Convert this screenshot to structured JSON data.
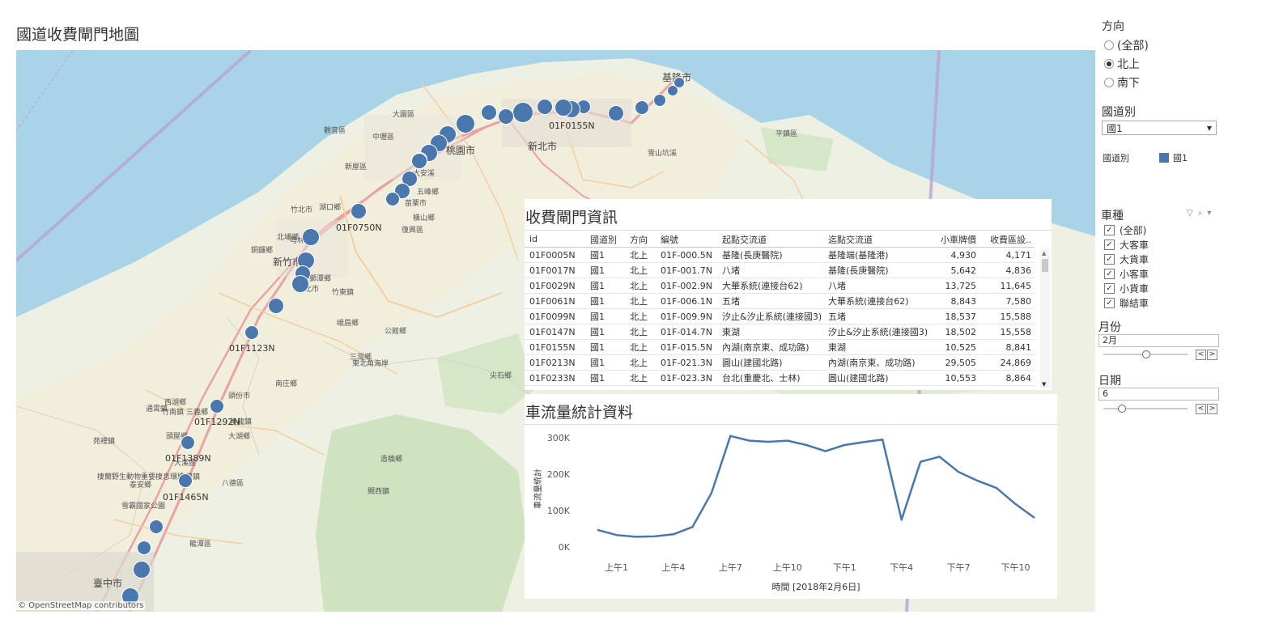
{
  "dashboard_title": "國道收費閘門地圖",
  "map": {
    "attribution": "© OpenStreetMap contributors",
    "colors": {
      "sea": "#a9d3e6",
      "land": "#eef0e4",
      "park": "#cfe3c0",
      "road_major": "#e8a3a3",
      "road_minor": "#f3cfa0",
      "boundary": "#b9a3d6",
      "marker": "#4a77ad"
    },
    "city_labels": [
      "桃園市",
      "新北市",
      "新竹市",
      "臺中市",
      "基隆市"
    ],
    "small_labels": [
      "大園區",
      "觀音區",
      "新屋區",
      "湖口鄉",
      "竹北市",
      "芎林鄉",
      "竹東鎮",
      "北埔鄉",
      "峨眉鄉",
      "三灣鄉",
      "南庄鄉",
      "頭份市",
      "後龍鎮",
      "西湖鄉",
      "通霄鎮",
      "苑裡鎮",
      "大湖鄉",
      "泰安鄉",
      "卓蘭鎮",
      "雪霸國家公園",
      "棲蘭野生動物重要棲息環境",
      "八德區",
      "大溪區",
      "龍潭區",
      "關西鎮",
      "尖石鄉",
      "五峰鄉",
      "橫山鄉",
      "復興區",
      "獅潭鄉",
      "公館鄉",
      "東北角海岸",
      "新北市",
      "中壢區",
      "平鎮區",
      "雪山坑溪",
      "大安溪",
      "苗栗市",
      "造橋鄉",
      "頭屋鄉",
      "竹南鎮",
      "三義鄉",
      "銅鑼鄉"
    ],
    "markers": [
      {
        "id": "01F0005N",
        "label": ""
      },
      {
        "id": "01F0017N",
        "label": ""
      },
      {
        "id": "01F0029N",
        "label": ""
      },
      {
        "id": "01F0061N",
        "label": ""
      },
      {
        "id": "01F0099N",
        "label": ""
      },
      {
        "id": "01F0147N",
        "label": ""
      },
      {
        "id": "01F0155N",
        "label": "01F0155N"
      },
      {
        "id": "01F0213N",
        "label": ""
      },
      {
        "id": "01F0233N",
        "label": ""
      },
      {
        "id": "01F0264N",
        "label": ""
      },
      {
        "id": "01F0293N",
        "label": ""
      },
      {
        "id": "01F0339N",
        "label": ""
      },
      {
        "id": "01F0376N",
        "label": ""
      },
      {
        "id": "01F0413N",
        "label": ""
      },
      {
        "id": "01F0467N",
        "label": ""
      },
      {
        "id": "01F0509N",
        "label": ""
      },
      {
        "id": "01F0532N",
        "label": ""
      },
      {
        "id": "01F0557N",
        "label": ""
      },
      {
        "id": "01F0578N",
        "label": ""
      },
      {
        "id": "01F0633N",
        "label": ""
      },
      {
        "id": "01F0681N",
        "label": ""
      },
      {
        "id": "01F0750N",
        "label": "01F0750N"
      },
      {
        "id": "01F0880N",
        "label": ""
      },
      {
        "id": "01F0928N",
        "label": ""
      },
      {
        "id": "01F0956N",
        "label": ""
      },
      {
        "id": "01F0980N",
        "label": ""
      },
      {
        "id": "01F1045N",
        "label": ""
      },
      {
        "id": "01F1123N",
        "label": "01F1123N"
      },
      {
        "id": "01F1292N",
        "label": "01F1292N"
      },
      {
        "id": "01F1389N",
        "label": "01F1389N"
      },
      {
        "id": "01F1465N",
        "label": "01F1465N"
      },
      {
        "id": "01F1578N",
        "label": ""
      },
      {
        "id": "01F1664N",
        "label": ""
      },
      {
        "id": "01F1720N",
        "label": ""
      },
      {
        "id": "01F1774N",
        "label": ""
      }
    ]
  },
  "filters": {
    "direction": {
      "title": "方向",
      "options": [
        "(全部)",
        "北上",
        "南下"
      ],
      "selected": "北上"
    },
    "highway": {
      "title": "國道別",
      "value": "國1"
    },
    "legend": {
      "title": "國道別",
      "item": "國1",
      "color": "#4a77ad"
    },
    "vehicle": {
      "title": "車種",
      "options": [
        "(全部)",
        "大客車",
        "大貨車",
        "小客車",
        "小貨車",
        "聯結車"
      ]
    },
    "month": {
      "title": "月份",
      "value": "2月"
    },
    "day": {
      "title": "日期",
      "value": "6"
    }
  },
  "table": {
    "title": "收費閘門資訊",
    "headers": [
      "id",
      "國道別",
      "方向",
      "編號",
      "起點交流道",
      "迄點交流道",
      "小車牌價",
      "收費區設.."
    ],
    "rows": [
      [
        "01F0005N",
        "國1",
        "北上",
        "01F-000.5N",
        "基隆(長庚醫院)",
        "基隆端(基隆港)",
        "4,930",
        "4,171"
      ],
      [
        "01F0017N",
        "國1",
        "北上",
        "01F-001.7N",
        "八堵",
        "基隆(長庚醫院)",
        "5,642",
        "4,836"
      ],
      [
        "01F0029N",
        "國1",
        "北上",
        "01F-002.9N",
        "大華系統(連接台62)",
        "八堵",
        "13,725",
        "11,645"
      ],
      [
        "01F0061N",
        "國1",
        "北上",
        "01F-006.1N",
        "五堵",
        "大華系統(連接台62)",
        "8,843",
        "7,580"
      ],
      [
        "01F0099N",
        "國1",
        "北上",
        "01F-009.9N",
        "汐止&汐止系統(連接國3)",
        "五堵",
        "18,537",
        "15,588"
      ],
      [
        "01F0147N",
        "國1",
        "北上",
        "01F-014.7N",
        "東湖",
        "汐止&汐止系統(連接國3)",
        "18,502",
        "15,558"
      ],
      [
        "01F0155N",
        "國1",
        "北上",
        "01F-015.5N",
        "內湖(南京東、成功路)",
        "東湖",
        "10,525",
        "8,841"
      ],
      [
        "01F0213N",
        "國1",
        "北上",
        "01F-021.3N",
        "圓山(建國北路)",
        "內湖(南京東、成功路)",
        "29,505",
        "24,869"
      ],
      [
        "01F0233N",
        "國1",
        "北上",
        "01F-023.3N",
        "台北(重慶北、士林)",
        "圓山(建國北路)",
        "10,553",
        "8,864"
      ]
    ]
  },
  "chart_title": "車流量統計資料",
  "chart_data": {
    "type": "line",
    "title": "車流量統計資料",
    "xlabel": "時間 [2018年2月6日]",
    "ylabel": "車流量統計",
    "x": [
      "上午0",
      "上午1",
      "上午2",
      "上午3",
      "上午4",
      "上午5",
      "上午6",
      "上午7",
      "上午8",
      "上午9",
      "上午10",
      "上午11",
      "下午0",
      "下午1",
      "下午2",
      "下午3",
      "下午4",
      "下午5",
      "下午6",
      "下午7",
      "下午8",
      "下午9",
      "下午10",
      "下午11"
    ],
    "xtick_labels": [
      "上午1",
      "上午4",
      "上午7",
      "上午10",
      "下午1",
      "下午4",
      "下午7",
      "下午10"
    ],
    "ytick_labels": [
      "0K",
      "100K",
      "200K",
      "300K"
    ],
    "ylim": [
      0,
      320000
    ],
    "series": [
      {
        "values": [
          47000,
          33000,
          28000,
          29000,
          35000,
          55000,
          148000,
          305000,
          292000,
          289000,
          292000,
          280000,
          263000,
          280000,
          288000,
          295000,
          75000,
          234000,
          248000,
          206000,
          182000,
          162000,
          118000,
          80000
        ]
      }
    ],
    "color": "#4a77ad",
    "grid": false
  }
}
